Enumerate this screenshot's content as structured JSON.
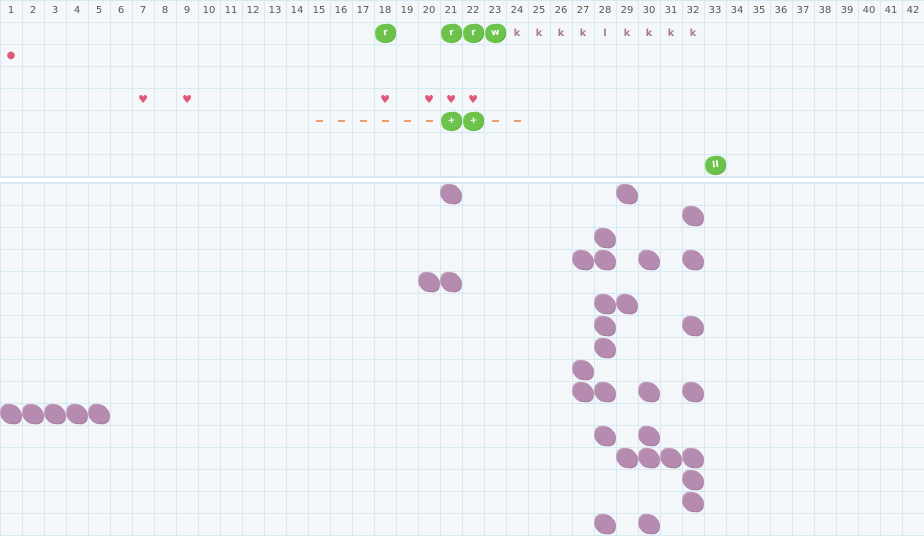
{
  "columns": [
    "1",
    "2",
    "3",
    "4",
    "5",
    "6",
    "7",
    "8",
    "9",
    "10",
    "11",
    "12",
    "13",
    "14",
    "15",
    "16",
    "17",
    "18",
    "19",
    "20",
    "21",
    "22",
    "23",
    "24",
    "25",
    "26",
    "27",
    "28",
    "29",
    "30",
    "31",
    "32",
    "33",
    "34",
    "35",
    "36",
    "37",
    "38",
    "39",
    "40",
    "41",
    "42"
  ],
  "top_marks": [
    {
      "col": 18,
      "row": 1,
      "type": "green",
      "label": "r"
    },
    {
      "col": 21,
      "row": 1,
      "type": "green",
      "label": "r"
    },
    {
      "col": 22,
      "row": 1,
      "type": "green",
      "label": "r"
    },
    {
      "col": 23,
      "row": 1,
      "type": "green",
      "label": "w"
    },
    {
      "col": 24,
      "row": 1,
      "type": "letter",
      "label": "k"
    },
    {
      "col": 25,
      "row": 1,
      "type": "letter",
      "label": "k"
    },
    {
      "col": 26,
      "row": 1,
      "type": "letter",
      "label": "k"
    },
    {
      "col": 27,
      "row": 1,
      "type": "letter",
      "label": "k"
    },
    {
      "col": 28,
      "row": 1,
      "type": "letter",
      "label": "l"
    },
    {
      "col": 29,
      "row": 1,
      "type": "letter",
      "label": "k"
    },
    {
      "col": 30,
      "row": 1,
      "type": "letter",
      "label": "k"
    },
    {
      "col": 31,
      "row": 1,
      "type": "letter",
      "label": "k"
    },
    {
      "col": 32,
      "row": 1,
      "type": "letter",
      "label": "k"
    },
    {
      "col": 1,
      "row": 2,
      "type": "drop",
      "label": "drop-icon"
    },
    {
      "col": 7,
      "row": 4,
      "type": "heart",
      "label": "heart-icon"
    },
    {
      "col": 9,
      "row": 4,
      "type": "heart",
      "label": "heart-icon"
    },
    {
      "col": 18,
      "row": 4,
      "type": "heart",
      "label": "heart-icon"
    },
    {
      "col": 20,
      "row": 4,
      "type": "heart",
      "label": "heart-icon"
    },
    {
      "col": 21,
      "row": 4,
      "type": "heart",
      "label": "heart-icon"
    },
    {
      "col": 22,
      "row": 4,
      "type": "heart",
      "label": "heart-icon"
    },
    {
      "col": 15,
      "row": 5,
      "type": "dash",
      "label": "dash-icon"
    },
    {
      "col": 16,
      "row": 5,
      "type": "dash",
      "label": "dash-icon"
    },
    {
      "col": 17,
      "row": 5,
      "type": "dash",
      "label": "dash-icon"
    },
    {
      "col": 18,
      "row": 5,
      "type": "dash",
      "label": "dash-icon"
    },
    {
      "col": 19,
      "row": 5,
      "type": "dash",
      "label": "dash-icon"
    },
    {
      "col": 20,
      "row": 5,
      "type": "dash",
      "label": "dash-icon"
    },
    {
      "col": 21,
      "row": 5,
      "type": "green",
      "label": "+"
    },
    {
      "col": 22,
      "row": 5,
      "type": "green",
      "label": "+"
    },
    {
      "col": 23,
      "row": 5,
      "type": "dash",
      "label": "dash-icon"
    },
    {
      "col": 24,
      "row": 5,
      "type": "dash",
      "label": "dash-icon"
    },
    {
      "col": 33,
      "row": 7,
      "type": "green",
      "label": "II"
    }
  ],
  "bottom_blobs": [
    [
      21,
      29
    ],
    [
      32
    ],
    [
      28
    ],
    [
      27,
      28,
      30,
      32
    ],
    [
      20,
      21
    ],
    [
      28,
      29
    ],
    [
      28,
      32
    ],
    [
      28
    ],
    [
      27
    ],
    [
      27,
      28,
      30,
      32
    ],
    [
      1,
      2,
      3,
      4,
      5
    ],
    [
      28,
      30
    ],
    [
      29,
      30,
      31,
      32
    ],
    [
      32
    ],
    [
      32
    ],
    [
      28,
      30
    ]
  ],
  "colors": {
    "green": "#6cc24a",
    "purple": "#b58cb0",
    "heart": "#e0577a",
    "dash": "#ef9a6a",
    "grid": "#d6e9f2"
  }
}
